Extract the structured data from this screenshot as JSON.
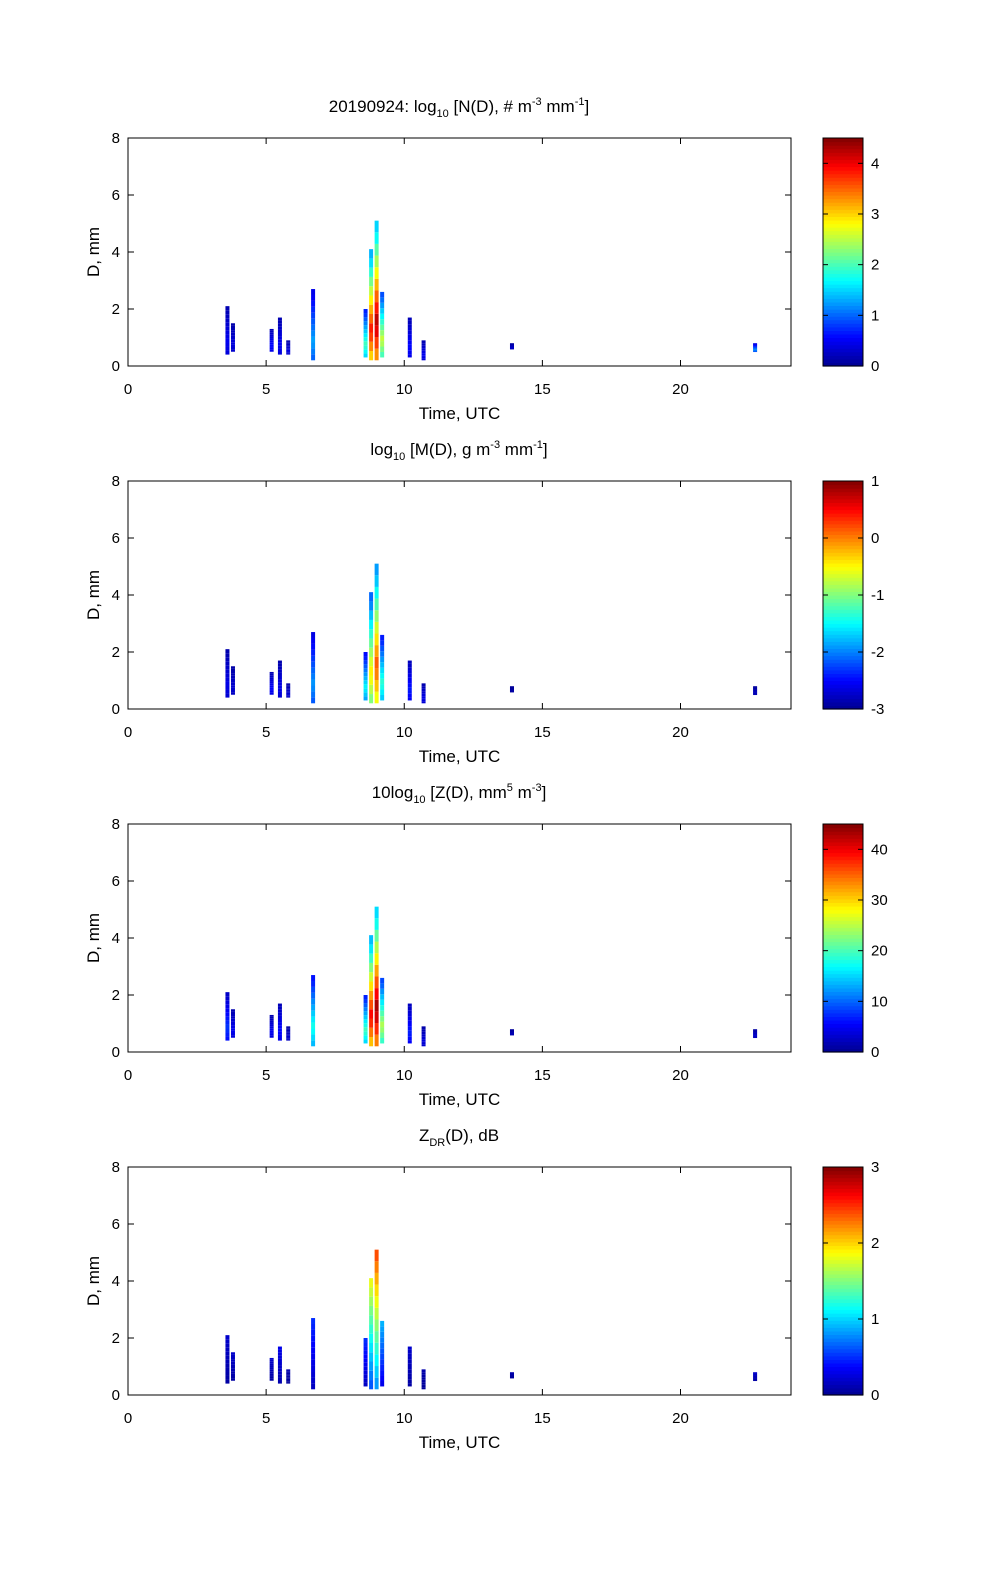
{
  "figure_date": "20190924",
  "colormap": [
    "#00008f",
    "#0000ff",
    "#0080ff",
    "#00ffff",
    "#80ff80",
    "#ffff00",
    "#ff8000",
    "#ff0000",
    "#800000"
  ],
  "chart_data": [
    {
      "type": "heatmap",
      "title_parts": [
        "20190924: log",
        "10",
        " [N(D), # m",
        "-3",
        " mm",
        "-1",
        "]"
      ],
      "xlabel": "Time, UTC",
      "ylabel": "D, mm",
      "xlim": [
        0,
        24
      ],
      "ylim": [
        0,
        8
      ],
      "xticks": [
        0,
        5,
        10,
        15,
        20
      ],
      "yticks": [
        0,
        2,
        4,
        6,
        8
      ],
      "clim": [
        0,
        4.5
      ],
      "cticks": [
        0,
        1,
        2,
        3,
        4
      ],
      "cells": [
        {
          "t": 3.6,
          "dmax": 2.1,
          "dmin": 0.4,
          "v": 0.5
        },
        {
          "t": 3.8,
          "dmax": 1.5,
          "dmin": 0.5,
          "v": 0.4
        },
        {
          "t": 5.2,
          "dmax": 1.3,
          "dmin": 0.5,
          "v": 0.6
        },
        {
          "t": 5.5,
          "dmax": 1.7,
          "dmin": 0.4,
          "v": 0.5
        },
        {
          "t": 5.8,
          "dmax": 0.9,
          "dmin": 0.4,
          "v": 0.4
        },
        {
          "t": 6.7,
          "dmax": 2.7,
          "dmin": 0.2,
          "v": 1.3
        },
        {
          "t": 8.6,
          "dmax": 2.0,
          "dmin": 0.3,
          "v": 2.0
        },
        {
          "t": 8.8,
          "dmax": 4.1,
          "dmin": 0.2,
          "v": 3.9
        },
        {
          "t": 9.0,
          "dmax": 5.1,
          "dmin": 0.2,
          "v": 4.3
        },
        {
          "t": 9.2,
          "dmax": 2.6,
          "dmin": 0.3,
          "v": 2.6
        },
        {
          "t": 10.2,
          "dmax": 1.7,
          "dmin": 0.3,
          "v": 0.6
        },
        {
          "t": 10.7,
          "dmax": 0.9,
          "dmin": 0.2,
          "v": 0.5
        },
        {
          "t": 13.9,
          "dmax": 0.8,
          "dmin": 0.6,
          "v": 0.3
        },
        {
          "t": 22.7,
          "dmax": 0.8,
          "dmin": 0.5,
          "v": 1.2
        }
      ]
    },
    {
      "type": "heatmap",
      "title_parts": [
        "log",
        "10",
        " [M(D), g m",
        "-3",
        " mm",
        "-1",
        "]"
      ],
      "xlabel": "Time, UTC",
      "ylabel": "D, mm",
      "xlim": [
        0,
        24
      ],
      "ylim": [
        0,
        8
      ],
      "xticks": [
        0,
        5,
        10,
        15,
        20
      ],
      "yticks": [
        0,
        2,
        4,
        6,
        8
      ],
      "clim": [
        -3,
        1
      ],
      "cticks": [
        -3,
        -2,
        -1,
        0,
        1
      ],
      "cells": [
        {
          "t": 3.6,
          "dmax": 2.1,
          "dmin": 0.4,
          "v": -2.6
        },
        {
          "t": 3.8,
          "dmax": 1.5,
          "dmin": 0.5,
          "v": -2.7
        },
        {
          "t": 5.2,
          "dmax": 1.3,
          "dmin": 0.5,
          "v": -2.5
        },
        {
          "t": 5.5,
          "dmax": 1.7,
          "dmin": 0.4,
          "v": -2.6
        },
        {
          "t": 5.8,
          "dmax": 0.9,
          "dmin": 0.4,
          "v": -2.7
        },
        {
          "t": 6.7,
          "dmax": 2.7,
          "dmin": 0.2,
          "v": -1.9
        },
        {
          "t": 8.6,
          "dmax": 2.0,
          "dmin": 0.3,
          "v": -1.5
        },
        {
          "t": 8.8,
          "dmax": 4.1,
          "dmin": 0.2,
          "v": -0.4
        },
        {
          "t": 9.0,
          "dmax": 5.1,
          "dmin": 0.2,
          "v": 0.2
        },
        {
          "t": 9.2,
          "dmax": 2.6,
          "dmin": 0.3,
          "v": -1.3
        },
        {
          "t": 10.2,
          "dmax": 1.7,
          "dmin": 0.3,
          "v": -2.4
        },
        {
          "t": 10.7,
          "dmax": 0.9,
          "dmin": 0.2,
          "v": -2.6
        },
        {
          "t": 13.9,
          "dmax": 0.8,
          "dmin": 0.6,
          "v": -2.9
        },
        {
          "t": 22.7,
          "dmax": 0.8,
          "dmin": 0.5,
          "v": -2.8
        }
      ]
    },
    {
      "type": "heatmap",
      "title_parts": [
        "10log",
        "10",
        " [Z(D),  mm",
        "5",
        " m",
        "-3",
        "]"
      ],
      "xlabel": "Time, UTC",
      "ylabel": "D, mm",
      "xlim": [
        0,
        24
      ],
      "ylim": [
        0,
        8
      ],
      "xticks": [
        0,
        5,
        10,
        15,
        20
      ],
      "yticks": [
        0,
        2,
        4,
        6,
        8
      ],
      "clim": [
        0,
        45
      ],
      "cticks": [
        0,
        10,
        20,
        30,
        40
      ],
      "cells": [
        {
          "t": 3.6,
          "dmax": 2.1,
          "dmin": 0.4,
          "v": 8
        },
        {
          "t": 3.8,
          "dmax": 1.5,
          "dmin": 0.5,
          "v": 5
        },
        {
          "t": 5.2,
          "dmax": 1.3,
          "dmin": 0.5,
          "v": 5
        },
        {
          "t": 5.5,
          "dmax": 1.7,
          "dmin": 0.4,
          "v": 6
        },
        {
          "t": 5.8,
          "dmax": 0.9,
          "dmin": 0.4,
          "v": 3
        },
        {
          "t": 6.7,
          "dmax": 2.7,
          "dmin": 0.2,
          "v": 18
        },
        {
          "t": 8.6,
          "dmax": 2.0,
          "dmin": 0.3,
          "v": 20
        },
        {
          "t": 8.8,
          "dmax": 4.1,
          "dmin": 0.2,
          "v": 40
        },
        {
          "t": 9.0,
          "dmax": 5.1,
          "dmin": 0.2,
          "v": 44
        },
        {
          "t": 9.2,
          "dmax": 2.6,
          "dmin": 0.3,
          "v": 25
        },
        {
          "t": 10.2,
          "dmax": 1.7,
          "dmin": 0.3,
          "v": 7
        },
        {
          "t": 10.7,
          "dmax": 0.9,
          "dmin": 0.2,
          "v": 4
        },
        {
          "t": 13.9,
          "dmax": 0.8,
          "dmin": 0.6,
          "v": 2
        },
        {
          "t": 22.7,
          "dmax": 0.8,
          "dmin": 0.5,
          "v": 3
        }
      ]
    },
    {
      "type": "heatmap",
      "title_parts": [
        "Z",
        "DR",
        "(D), dB"
      ],
      "xlabel": "Time, UTC",
      "ylabel": "D, mm",
      "xlim": [
        0,
        24
      ],
      "ylim": [
        0,
        8
      ],
      "xticks": [
        0,
        5,
        10,
        15,
        20
      ],
      "yticks": [
        0,
        2,
        4,
        6,
        8
      ],
      "clim": [
        0,
        3
      ],
      "cticks": [
        0,
        1,
        2,
        3
      ],
      "cells": [
        {
          "t": 3.6,
          "dmax": 2.1,
          "dmin": 0.4,
          "v": 0.2
        },
        {
          "t": 3.8,
          "dmax": 1.5,
          "dmin": 0.5,
          "v": 0.2
        },
        {
          "t": 5.2,
          "dmax": 1.3,
          "dmin": 0.5,
          "v": 0.2
        },
        {
          "t": 5.5,
          "dmax": 1.7,
          "dmin": 0.4,
          "v": 0.3
        },
        {
          "t": 5.8,
          "dmax": 0.9,
          "dmin": 0.4,
          "v": 0.1
        },
        {
          "t": 6.7,
          "dmax": 2.7,
          "dmin": 0.2,
          "v": 0.5
        },
        {
          "t": 8.6,
          "dmax": 2.0,
          "dmin": 0.3,
          "v": 0.5
        },
        {
          "t": 8.8,
          "dmax": 4.1,
          "dmin": 0.2,
          "v": 1.8
        },
        {
          "t": 9.0,
          "dmax": 5.1,
          "dmin": 0.2,
          "v": 2.4
        },
        {
          "t": 9.2,
          "dmax": 2.6,
          "dmin": 0.3,
          "v": 0.9
        },
        {
          "t": 10.2,
          "dmax": 1.7,
          "dmin": 0.3,
          "v": 0.2
        },
        {
          "t": 10.7,
          "dmax": 0.9,
          "dmin": 0.2,
          "v": 0.1
        },
        {
          "t": 13.9,
          "dmax": 0.8,
          "dmin": 0.6,
          "v": 0.1
        },
        {
          "t": 22.7,
          "dmax": 0.8,
          "dmin": 0.5,
          "v": 0.2
        }
      ]
    }
  ]
}
